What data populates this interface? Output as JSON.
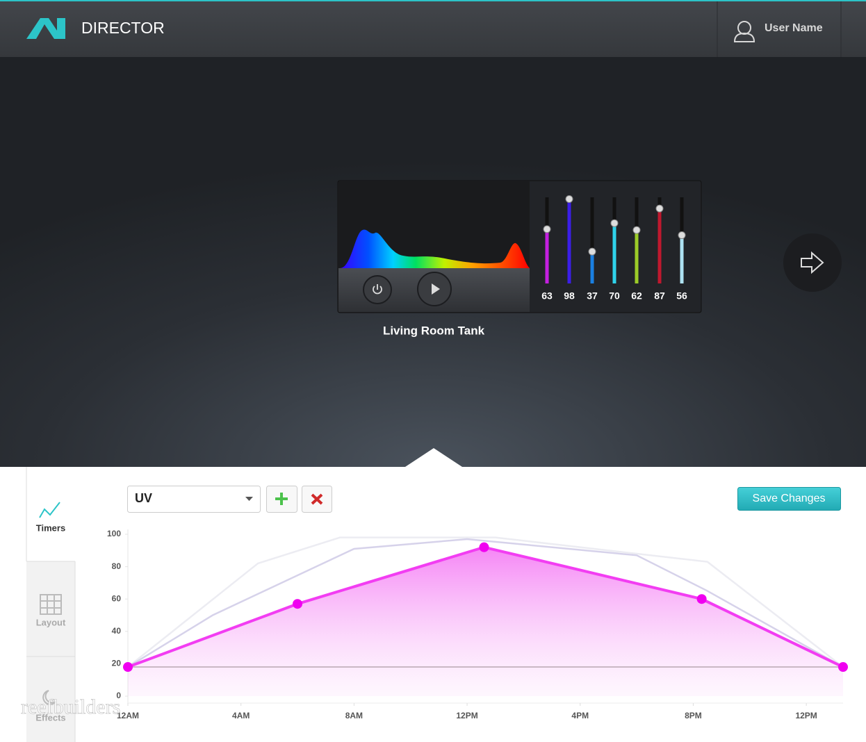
{
  "header": {
    "brand": "DIRECTOR",
    "user": "User Name"
  },
  "device": {
    "name": "Living Room Tank",
    "levels": [
      63,
      98,
      37,
      70,
      62,
      87,
      56
    ],
    "colors": [
      "#c41fe0",
      "#3b1ee8",
      "#1a80e2",
      "#2fd2ea",
      "#9ccc28",
      "#c0182e",
      "#aee2f2"
    ],
    "max": 100
  },
  "tabs": [
    "Timers",
    "Layout",
    "Effects"
  ],
  "toolbar": {
    "channel": "UV",
    "save": "Save Changes"
  },
  "watermark": "reefbuilders",
  "chart_data": {
    "type": "area",
    "xlim": [
      0,
      25.3
    ],
    "ylim": [
      0,
      100
    ],
    "yticks": [
      0,
      20,
      40,
      60,
      80,
      100
    ],
    "xticks": [
      {
        "value": 0,
        "label": "12AM"
      },
      {
        "value": 4,
        "label": "4AM"
      },
      {
        "value": 8,
        "label": "8AM"
      },
      {
        "value": 12,
        "label": "12PM"
      },
      {
        "value": 16,
        "label": "4PM"
      },
      {
        "value": 20,
        "label": "8PM"
      },
      {
        "value": 24,
        "label": "12PM"
      }
    ],
    "series": [
      {
        "color": "#f23df2",
        "area": true,
        "x": [
          0,
          6,
          12.6,
          20.3,
          25.3
        ],
        "values": [
          18,
          57,
          92,
          60,
          18
        ]
      },
      {
        "color": "#d6d2ea",
        "area": false,
        "x": [
          0,
          3,
          8,
          12,
          18,
          20.5,
          25.3
        ],
        "values": [
          18,
          50,
          91,
          97,
          87,
          65,
          18
        ]
      },
      {
        "color": "#ececf2",
        "area": false,
        "x": [
          0,
          4.6,
          7.5,
          13,
          20.5,
          25.3
        ],
        "values": [
          18,
          82,
          98,
          98,
          83,
          18
        ]
      }
    ]
  }
}
